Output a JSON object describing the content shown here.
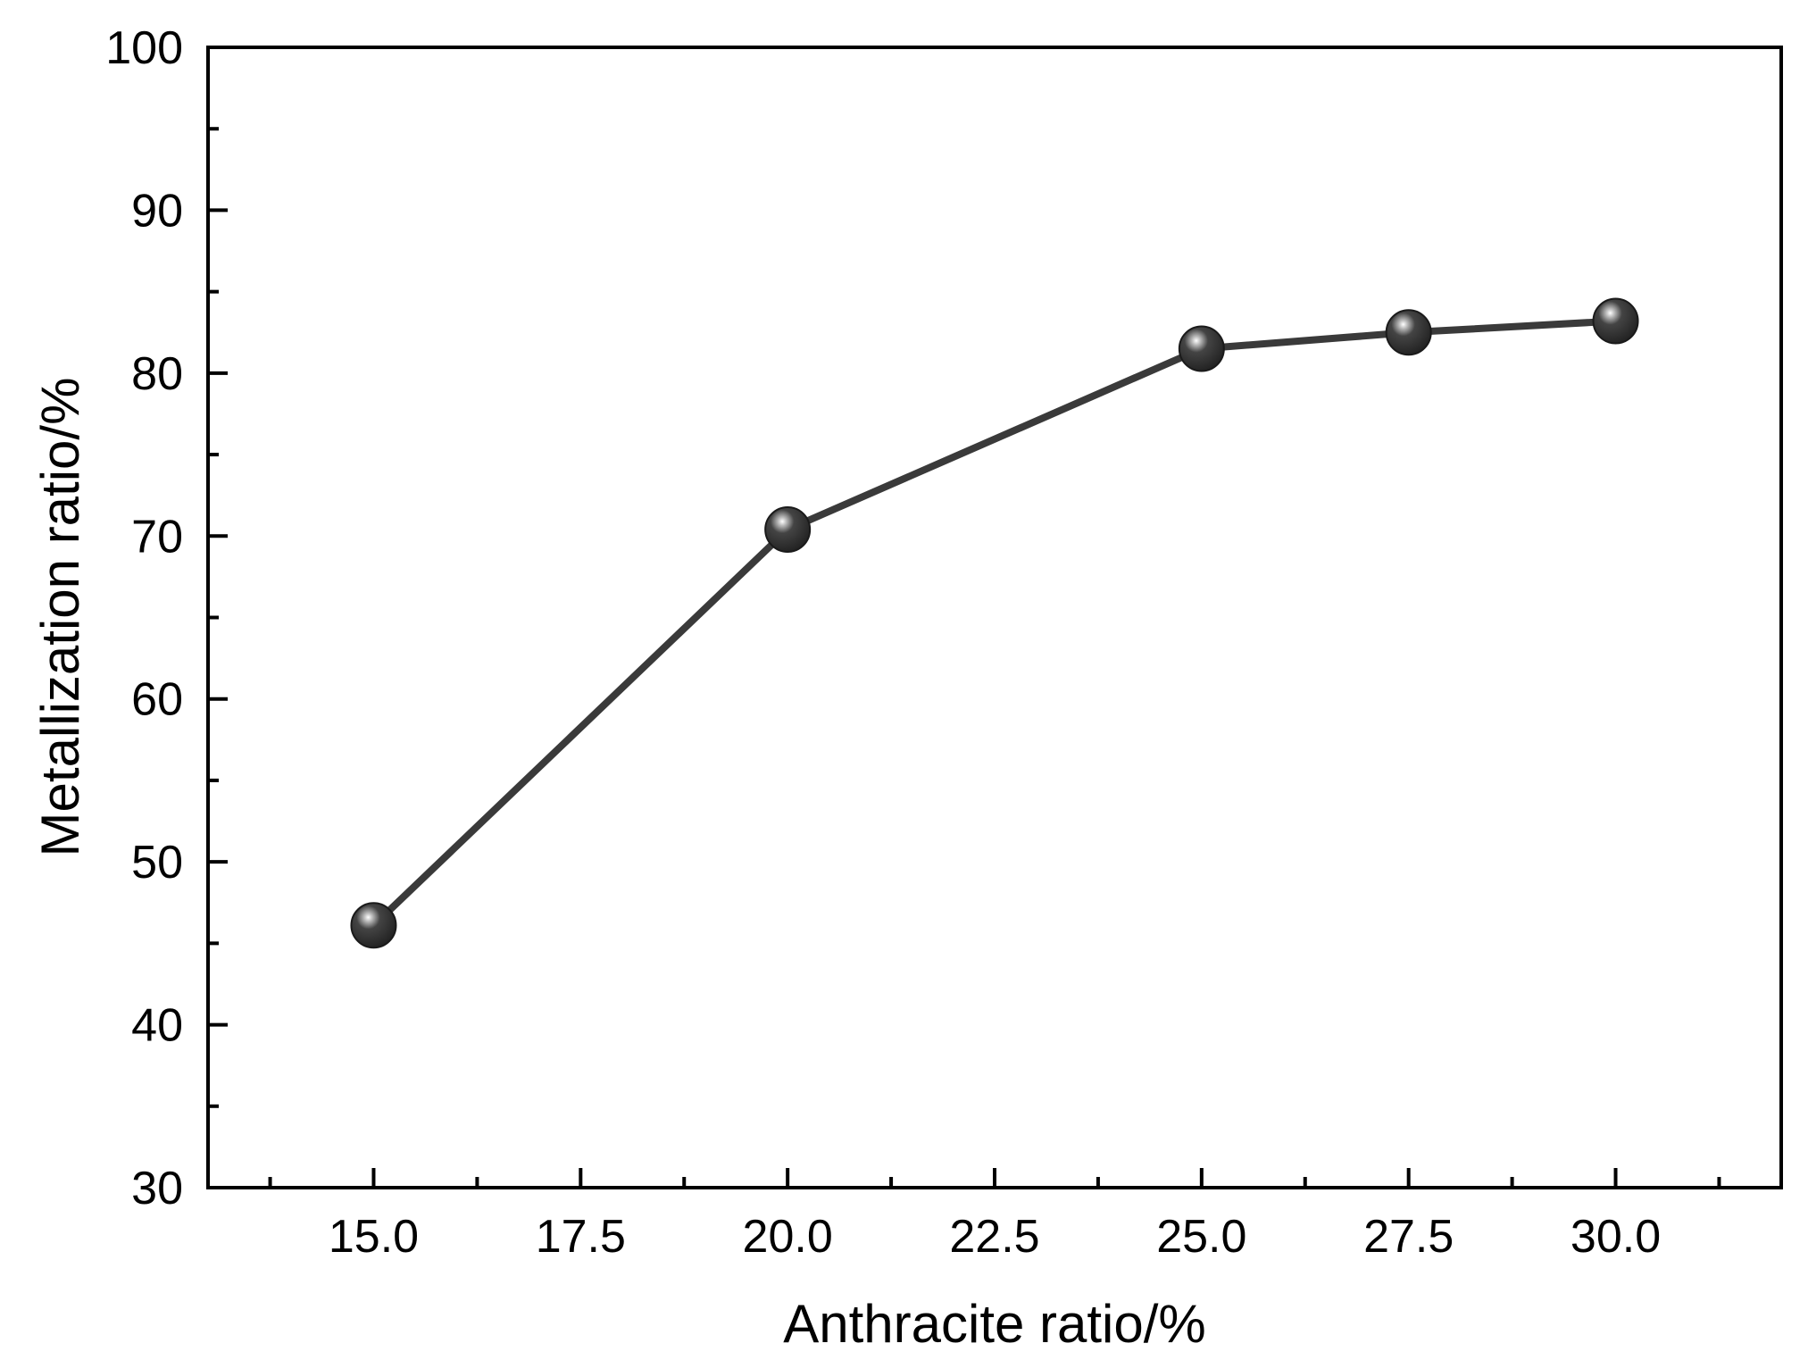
{
  "chart_data": {
    "type": "line",
    "title": "",
    "xlabel": "Anthracite ratio/%",
    "ylabel": "Metallization ratio/%",
    "xlim": [
      13.0,
      32.0
    ],
    "ylim": [
      30,
      100
    ],
    "x_ticks": [
      "15.0",
      "17.5",
      "20.0",
      "22.5",
      "25.0",
      "27.5",
      "30.0"
    ],
    "y_ticks": [
      "30",
      "40",
      "50",
      "60",
      "70",
      "80",
      "90",
      "100"
    ],
    "grid": false,
    "legend": "none",
    "series": [
      {
        "x": [
          15.0,
          20.0,
          25.0,
          27.5,
          30.0
        ],
        "values": [
          46.1,
          70.4,
          81.5,
          82.5,
          83.2
        ],
        "color": "#3a3a3a",
        "marker": "sphere"
      }
    ]
  }
}
